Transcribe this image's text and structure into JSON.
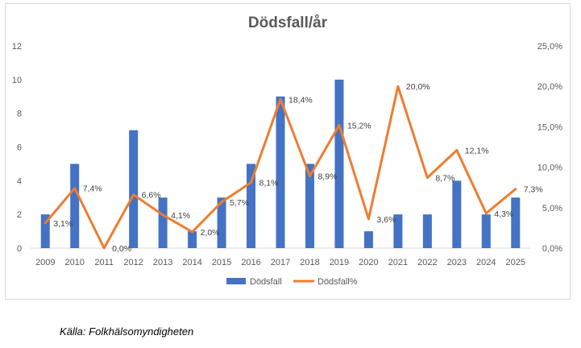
{
  "chart_data": {
    "type": "bar",
    "title": "Dödsfall/år",
    "categories": [
      "2009",
      "2010",
      "2011",
      "2012",
      "2013",
      "2014",
      "2015",
      "2016",
      "2017",
      "2018",
      "2019",
      "2020",
      "2021",
      "2022",
      "2023",
      "2024",
      "2025"
    ],
    "series": [
      {
        "name": "Dödsfall",
        "type": "bar",
        "axis": "left",
        "color": "#4472c4",
        "values": [
          2,
          5,
          0,
          7,
          3,
          1,
          3,
          5,
          9,
          5,
          10,
          1,
          2,
          2,
          4,
          2,
          3
        ]
      },
      {
        "name": "Dödsfall%",
        "type": "line",
        "axis": "right",
        "color": "#ed7d31",
        "values": [
          3.1,
          7.4,
          0.0,
          6.6,
          4.1,
          2.0,
          5.7,
          8.1,
          18.4,
          8.9,
          15.2,
          3.6,
          20.0,
          8.7,
          12.1,
          4.3,
          7.3
        ],
        "labels": [
          "3,1%",
          "7,4%",
          "0,0%",
          "6,6%",
          "4,1%",
          "2,0%",
          "5,7%",
          "8,1%",
          "18,4%",
          "8,9%",
          "15,2%",
          "3,6%",
          "20,0%",
          "8,7%",
          "12,1%",
          "4,3%",
          "7,3%"
        ]
      }
    ],
    "ylim": [
      0,
      12
    ],
    "y_ticks": [
      "0",
      "2",
      "4",
      "6",
      "8",
      "10",
      "12"
    ],
    "y2lim": [
      0,
      25
    ],
    "y2_ticks": [
      "0,0%",
      "5,0%",
      "10,0%",
      "15,0%",
      "20,0%",
      "25,0%"
    ],
    "grid": false,
    "legend_position": "bottom"
  },
  "source_text": "Källa: Folkhälsomyndigheten"
}
